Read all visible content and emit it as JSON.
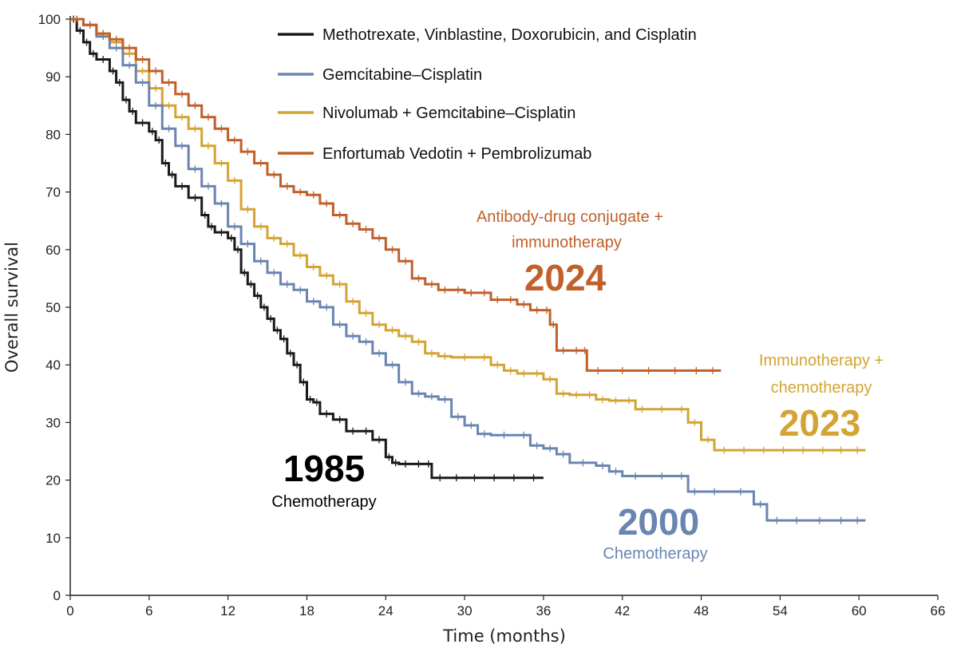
{
  "chart_data": {
    "type": "line",
    "xlabel": "Time (months)",
    "ylabel": "Overall survival",
    "xlim": [
      0,
      66
    ],
    "ylim": [
      0,
      100
    ],
    "xticks": [
      0,
      6,
      12,
      18,
      24,
      30,
      36,
      42,
      48,
      54,
      60,
      66
    ],
    "yticks": [
      0,
      10,
      20,
      30,
      40,
      50,
      60,
      70,
      80,
      90,
      100
    ],
    "grid": false,
    "legend_position": "top",
    "series": [
      {
        "name": "Methotrexate, Vinblastine, Doxorubicin, and Cisplatin",
        "color": "#1a1a1a",
        "points": [
          [
            0,
            100
          ],
          [
            0.5,
            98
          ],
          [
            1,
            96
          ],
          [
            1.5,
            94
          ],
          [
            2,
            93
          ],
          [
            3,
            91
          ],
          [
            3.5,
            89
          ],
          [
            4,
            86
          ],
          [
            4.5,
            84
          ],
          [
            5,
            82
          ],
          [
            6,
            80.5
          ],
          [
            6.5,
            79
          ],
          [
            7,
            75
          ],
          [
            7.5,
            73
          ],
          [
            8,
            71
          ],
          [
            9,
            69
          ],
          [
            10,
            66
          ],
          [
            10.5,
            64
          ],
          [
            11,
            63
          ],
          [
            12,
            62
          ],
          [
            12.5,
            60
          ],
          [
            13,
            56
          ],
          [
            13.5,
            54
          ],
          [
            14,
            52
          ],
          [
            14.5,
            50
          ],
          [
            15,
            48
          ],
          [
            15.5,
            46
          ],
          [
            16,
            44.5
          ],
          [
            16.5,
            42
          ],
          [
            17,
            40
          ],
          [
            17.5,
            37
          ],
          [
            18,
            34
          ],
          [
            18.5,
            33.5
          ],
          [
            19,
            31.5
          ],
          [
            20,
            30.5
          ],
          [
            21,
            28.5
          ],
          [
            22,
            28.5
          ],
          [
            23,
            27
          ],
          [
            24,
            24
          ],
          [
            24.5,
            23
          ],
          [
            25,
            22.8
          ],
          [
            26,
            22.8
          ],
          [
            27,
            22.8
          ],
          [
            27.5,
            20.4
          ],
          [
            30,
            20.4
          ],
          [
            33,
            20.4
          ],
          [
            36,
            20.4
          ]
        ]
      },
      {
        "name": "Gemcitabine–Cisplatin",
        "color": "#6a85b0",
        "points": [
          [
            0,
            100
          ],
          [
            1,
            99
          ],
          [
            2,
            97
          ],
          [
            3,
            95
          ],
          [
            4,
            92
          ],
          [
            5,
            89
          ],
          [
            6,
            85
          ],
          [
            7,
            81
          ],
          [
            8,
            78
          ],
          [
            9,
            74
          ],
          [
            10,
            71
          ],
          [
            11,
            68
          ],
          [
            12,
            64
          ],
          [
            13,
            61
          ],
          [
            14,
            58
          ],
          [
            15,
            56
          ],
          [
            16,
            54
          ],
          [
            17,
            53
          ],
          [
            18,
            51
          ],
          [
            19,
            50
          ],
          [
            20,
            47
          ],
          [
            21,
            45
          ],
          [
            22,
            44
          ],
          [
            23,
            42
          ],
          [
            24,
            40
          ],
          [
            25,
            37
          ],
          [
            26,
            35
          ],
          [
            27,
            34.5
          ],
          [
            28,
            34
          ],
          [
            29,
            31
          ],
          [
            30,
            29.5
          ],
          [
            31,
            28
          ],
          [
            32,
            27.8
          ],
          [
            34,
            27.8
          ],
          [
            35,
            26
          ],
          [
            36,
            25.5
          ],
          [
            37,
            24.5
          ],
          [
            38,
            23
          ],
          [
            40,
            22.5
          ],
          [
            41,
            21.5
          ],
          [
            42,
            20.7
          ],
          [
            44,
            20.7
          ],
          [
            46,
            20.7
          ],
          [
            47,
            18
          ],
          [
            48,
            18
          ],
          [
            50,
            18
          ],
          [
            52,
            15.8
          ],
          [
            53,
            13
          ],
          [
            56,
            13
          ],
          [
            58,
            13
          ],
          [
            60.5,
            13
          ]
        ]
      },
      {
        "name": "Nivolumab + Gemcitabine–Cisplatin",
        "color": "#d4a433",
        "points": [
          [
            0,
            100
          ],
          [
            1,
            99
          ],
          [
            2,
            97.5
          ],
          [
            3,
            96
          ],
          [
            4,
            94
          ],
          [
            5,
            91
          ],
          [
            6,
            88
          ],
          [
            7,
            85
          ],
          [
            8,
            83
          ],
          [
            9,
            81
          ],
          [
            10,
            78
          ],
          [
            11,
            75
          ],
          [
            12,
            72
          ],
          [
            13,
            67
          ],
          [
            14,
            64
          ],
          [
            15,
            62
          ],
          [
            16,
            61
          ],
          [
            17,
            59
          ],
          [
            18,
            57
          ],
          [
            19,
            55.5
          ],
          [
            20,
            54
          ],
          [
            21,
            51
          ],
          [
            22,
            49
          ],
          [
            23,
            47
          ],
          [
            24,
            46
          ],
          [
            25,
            45
          ],
          [
            26,
            44
          ],
          [
            27,
            42
          ],
          [
            28,
            41.5
          ],
          [
            29,
            41.3
          ],
          [
            31,
            41.3
          ],
          [
            32,
            40
          ],
          [
            33,
            39
          ],
          [
            34,
            38.5
          ],
          [
            35,
            38.5
          ],
          [
            36,
            37.5
          ],
          [
            37,
            35
          ],
          [
            38,
            34.8
          ],
          [
            39,
            34.8
          ],
          [
            40,
            34
          ],
          [
            41,
            33.8
          ],
          [
            42,
            33.8
          ],
          [
            43,
            32.3
          ],
          [
            44,
            32.3
          ],
          [
            46,
            32.3
          ],
          [
            47,
            30
          ],
          [
            48,
            27
          ],
          [
            49,
            25.2
          ],
          [
            52,
            25.2
          ],
          [
            55,
            25.2
          ],
          [
            58,
            25.2
          ],
          [
            60.5,
            25.2
          ]
        ]
      },
      {
        "name": "Enfortumab Vedotin + Pembrolizumab",
        "color": "#c0602a",
        "points": [
          [
            0,
            100
          ],
          [
            1,
            99
          ],
          [
            2,
            97.5
          ],
          [
            3,
            96.5
          ],
          [
            4,
            95
          ],
          [
            5,
            93
          ],
          [
            6,
            91
          ],
          [
            7,
            89
          ],
          [
            8,
            87
          ],
          [
            9,
            85
          ],
          [
            10,
            83
          ],
          [
            11,
            81
          ],
          [
            12,
            79
          ],
          [
            13,
            77
          ],
          [
            14,
            75
          ],
          [
            15,
            73
          ],
          [
            16,
            71
          ],
          [
            17,
            70
          ],
          [
            18,
            69.5
          ],
          [
            19,
            68
          ],
          [
            20,
            66
          ],
          [
            21,
            64.5
          ],
          [
            22,
            63.5
          ],
          [
            23,
            62
          ],
          [
            24,
            60
          ],
          [
            25,
            58
          ],
          [
            26,
            55
          ],
          [
            27,
            54
          ],
          [
            28,
            53
          ],
          [
            29,
            53
          ],
          [
            30,
            52.5
          ],
          [
            31,
            52.5
          ],
          [
            32,
            51.3
          ],
          [
            33,
            51.3
          ],
          [
            34,
            50.5
          ],
          [
            35,
            49.5
          ],
          [
            36,
            49.5
          ],
          [
            36.5,
            47
          ],
          [
            37,
            42.5
          ],
          [
            38,
            42.5
          ],
          [
            39,
            42.5
          ],
          [
            39.3,
            39
          ],
          [
            41,
            39
          ],
          [
            43,
            39
          ],
          [
            45,
            39
          ],
          [
            47,
            39
          ],
          [
            49.5,
            39
          ]
        ]
      }
    ],
    "annotations": [
      {
        "year": "1985",
        "text": "Chemotherapy",
        "color": "#000000"
      },
      {
        "year": "2000",
        "text": "Chemotherapy",
        "color": "#6a85b0"
      },
      {
        "year": "2023",
        "text_lines": [
          "Immunotherapy +",
          "chemotherapy"
        ],
        "color": "#d4a433"
      },
      {
        "year": "2024",
        "text_lines": [
          "Antibody-drug conjugate +",
          "immunotherapy"
        ],
        "color": "#c0602a"
      }
    ]
  }
}
